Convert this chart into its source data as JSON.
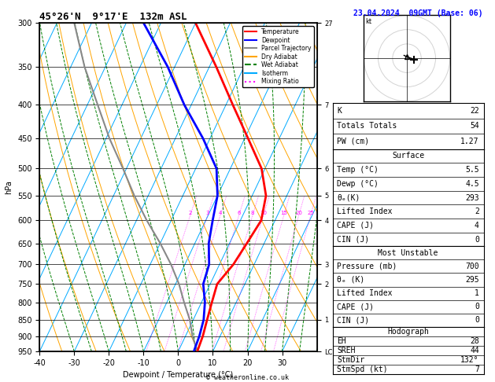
{
  "title_left": "45°26'N  9°17'E  132m ASL",
  "title_right": "23.04.2024  09GMT (Base: 06)",
  "xlabel": "Dewpoint / Temperature (°C)",
  "ylabel_left": "hPa",
  "plevels": [
    300,
    350,
    400,
    450,
    500,
    550,
    600,
    650,
    700,
    750,
    800,
    850,
    900,
    950
  ],
  "xlim": [
    -40,
    40
  ],
  "xticks": [
    -40,
    -30,
    -20,
    -10,
    0,
    10,
    20,
    30
  ],
  "pressure_min": 300,
  "pressure_max": 950,
  "km_labels": {
    "300": "27",
    "400": "7",
    "500": "6",
    "550": "5",
    "600": "4",
    "700": "3",
    "750": "2",
    "850": "1",
    "950": "LCL"
  },
  "temp_profile_p": [
    950,
    900,
    850,
    800,
    750,
    700,
    650,
    600,
    550,
    500,
    450,
    400,
    350,
    300
  ],
  "temp_profile_t": [
    5.5,
    5.0,
    4.0,
    3.0,
    2.0,
    4.0,
    5.0,
    6.0,
    4.0,
    -1.0,
    -9.0,
    -18.0,
    -28.0,
    -40.0
  ],
  "dew_profile_p": [
    950,
    900,
    850,
    800,
    750,
    700,
    650,
    600,
    550,
    500,
    450,
    400,
    350,
    300
  ],
  "dew_profile_t": [
    4.5,
    4.0,
    3.0,
    1.0,
    -2.0,
    -3.0,
    -6.0,
    -8.0,
    -10.0,
    -14.0,
    -22.0,
    -32.0,
    -42.0,
    -55.0
  ],
  "parcel_profile_p": [
    950,
    900,
    850,
    800,
    750,
    700,
    650,
    600,
    550,
    500,
    450,
    400,
    350,
    300
  ],
  "parcel_profile_t": [
    5.5,
    2.0,
    -1.0,
    -5.0,
    -9.0,
    -14.0,
    -20.0,
    -27.0,
    -34.0,
    -41.0,
    -49.0,
    -57.0,
    -66.0,
    -75.0
  ],
  "mixing_ratios": [
    2,
    3,
    4,
    6,
    8,
    10,
    15,
    20,
    25
  ],
  "color_temp": "#ff0000",
  "color_dew": "#0000ff",
  "color_parcel": "#888888",
  "color_dry_adiabat": "#ffa500",
  "color_wet_adiabat": "#008000",
  "color_isotherm": "#00aaff",
  "color_mixing": "#ff00ff",
  "color_background": "#ffffff",
  "legend_items": [
    "Temperature",
    "Dewpoint",
    "Parcel Trajectory",
    "Dry Adiabat",
    "Wet Adiabat",
    "Isotherm",
    "Mixing Ratio"
  ],
  "info_K": 22,
  "info_TT": 54,
  "info_PW": "1.27",
  "info_surf_temp": "5.5",
  "info_surf_dew": "4.5",
  "info_surf_theta": 293,
  "info_surf_LI": 2,
  "info_surf_CAPE": 4,
  "info_surf_CIN": 0,
  "info_mu_pres": 700,
  "info_mu_theta": 295,
  "info_mu_LI": 1,
  "info_mu_CAPE": 0,
  "info_mu_CIN": 0,
  "info_EH": 28,
  "info_SREH": 44,
  "info_StmDir": "132°",
  "info_StmSpd": 7,
  "footer": "© weatheronline.co.uk",
  "skew_deg": 45.0,
  "hodo_line_u": [
    -2,
    0,
    3,
    5
  ],
  "hodo_line_v": [
    2,
    1,
    0,
    -1
  ]
}
